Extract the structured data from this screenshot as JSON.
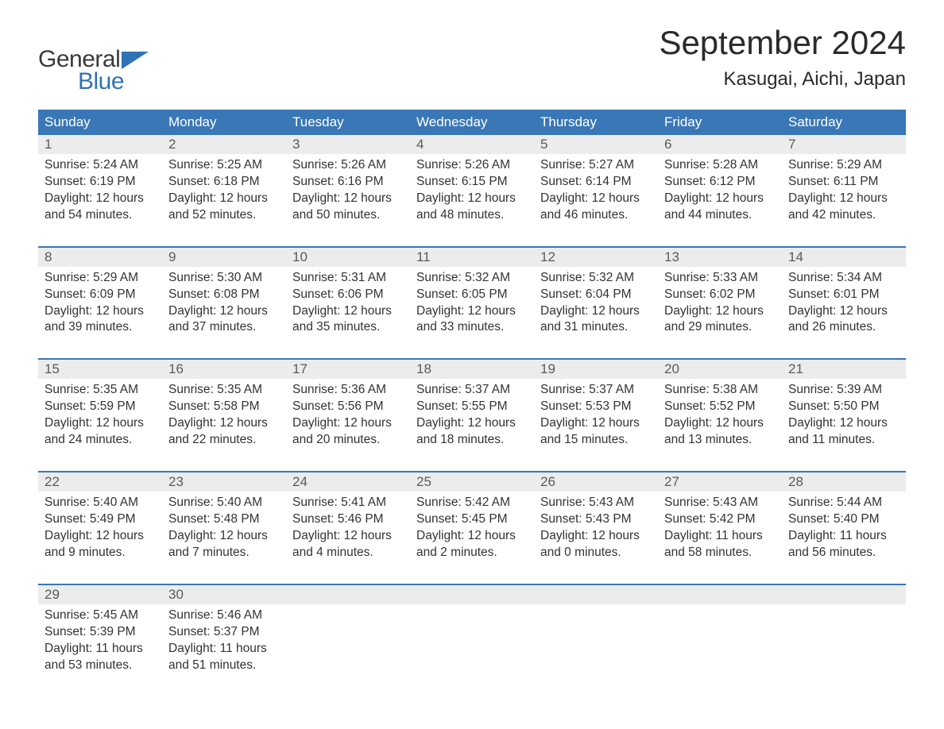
{
  "brand": {
    "word1": "General",
    "word2": "Blue"
  },
  "title": "September 2024",
  "location": "Kasugai, Aichi, Japan",
  "colors": {
    "header_bg": "#3a77b6",
    "header_text": "#ffffff",
    "daynum_bg": "#ececec",
    "week_sep": "#3a77b6",
    "body_text": "#333333",
    "logo_accent": "#2f72b5",
    "logo_gray": "#3a3a3a",
    "page_bg": "#ffffff"
  },
  "layout": {
    "columns": 7,
    "rows": 5,
    "title_fontsize": 42,
    "location_fontsize": 24,
    "dow_fontsize": 17,
    "daynum_fontsize": 17,
    "body_fontsize": 15.5
  },
  "dow": [
    "Sunday",
    "Monday",
    "Tuesday",
    "Wednesday",
    "Thursday",
    "Friday",
    "Saturday"
  ],
  "weeks": [
    [
      {
        "n": "1",
        "sr": "5:24 AM",
        "ss": "6:19 PM",
        "dl": "12 hours and 54 minutes."
      },
      {
        "n": "2",
        "sr": "5:25 AM",
        "ss": "6:18 PM",
        "dl": "12 hours and 52 minutes."
      },
      {
        "n": "3",
        "sr": "5:26 AM",
        "ss": "6:16 PM",
        "dl": "12 hours and 50 minutes."
      },
      {
        "n": "4",
        "sr": "5:26 AM",
        "ss": "6:15 PM",
        "dl": "12 hours and 48 minutes."
      },
      {
        "n": "5",
        "sr": "5:27 AM",
        "ss": "6:14 PM",
        "dl": "12 hours and 46 minutes."
      },
      {
        "n": "6",
        "sr": "5:28 AM",
        "ss": "6:12 PM",
        "dl": "12 hours and 44 minutes."
      },
      {
        "n": "7",
        "sr": "5:29 AM",
        "ss": "6:11 PM",
        "dl": "12 hours and 42 minutes."
      }
    ],
    [
      {
        "n": "8",
        "sr": "5:29 AM",
        "ss": "6:09 PM",
        "dl": "12 hours and 39 minutes."
      },
      {
        "n": "9",
        "sr": "5:30 AM",
        "ss": "6:08 PM",
        "dl": "12 hours and 37 minutes."
      },
      {
        "n": "10",
        "sr": "5:31 AM",
        "ss": "6:06 PM",
        "dl": "12 hours and 35 minutes."
      },
      {
        "n": "11",
        "sr": "5:32 AM",
        "ss": "6:05 PM",
        "dl": "12 hours and 33 minutes."
      },
      {
        "n": "12",
        "sr": "5:32 AM",
        "ss": "6:04 PM",
        "dl": "12 hours and 31 minutes."
      },
      {
        "n": "13",
        "sr": "5:33 AM",
        "ss": "6:02 PM",
        "dl": "12 hours and 29 minutes."
      },
      {
        "n": "14",
        "sr": "5:34 AM",
        "ss": "6:01 PM",
        "dl": "12 hours and 26 minutes."
      }
    ],
    [
      {
        "n": "15",
        "sr": "5:35 AM",
        "ss": "5:59 PM",
        "dl": "12 hours and 24 minutes."
      },
      {
        "n": "16",
        "sr": "5:35 AM",
        "ss": "5:58 PM",
        "dl": "12 hours and 22 minutes."
      },
      {
        "n": "17",
        "sr": "5:36 AM",
        "ss": "5:56 PM",
        "dl": "12 hours and 20 minutes."
      },
      {
        "n": "18",
        "sr": "5:37 AM",
        "ss": "5:55 PM",
        "dl": "12 hours and 18 minutes."
      },
      {
        "n": "19",
        "sr": "5:37 AM",
        "ss": "5:53 PM",
        "dl": "12 hours and 15 minutes."
      },
      {
        "n": "20",
        "sr": "5:38 AM",
        "ss": "5:52 PM",
        "dl": "12 hours and 13 minutes."
      },
      {
        "n": "21",
        "sr": "5:39 AM",
        "ss": "5:50 PM",
        "dl": "12 hours and 11 minutes."
      }
    ],
    [
      {
        "n": "22",
        "sr": "5:40 AM",
        "ss": "5:49 PM",
        "dl": "12 hours and 9 minutes."
      },
      {
        "n": "23",
        "sr": "5:40 AM",
        "ss": "5:48 PM",
        "dl": "12 hours and 7 minutes."
      },
      {
        "n": "24",
        "sr": "5:41 AM",
        "ss": "5:46 PM",
        "dl": "12 hours and 4 minutes."
      },
      {
        "n": "25",
        "sr": "5:42 AM",
        "ss": "5:45 PM",
        "dl": "12 hours and 2 minutes."
      },
      {
        "n": "26",
        "sr": "5:43 AM",
        "ss": "5:43 PM",
        "dl": "12 hours and 0 minutes."
      },
      {
        "n": "27",
        "sr": "5:43 AM",
        "ss": "5:42 PM",
        "dl": "11 hours and 58 minutes."
      },
      {
        "n": "28",
        "sr": "5:44 AM",
        "ss": "5:40 PM",
        "dl": "11 hours and 56 minutes."
      }
    ],
    [
      {
        "n": "29",
        "sr": "5:45 AM",
        "ss": "5:39 PM",
        "dl": "11 hours and 53 minutes."
      },
      {
        "n": "30",
        "sr": "5:46 AM",
        "ss": "5:37 PM",
        "dl": "11 hours and 51 minutes."
      },
      null,
      null,
      null,
      null,
      null
    ]
  ],
  "labels": {
    "sunrise": "Sunrise: ",
    "sunset": "Sunset: ",
    "daylight": "Daylight: "
  }
}
